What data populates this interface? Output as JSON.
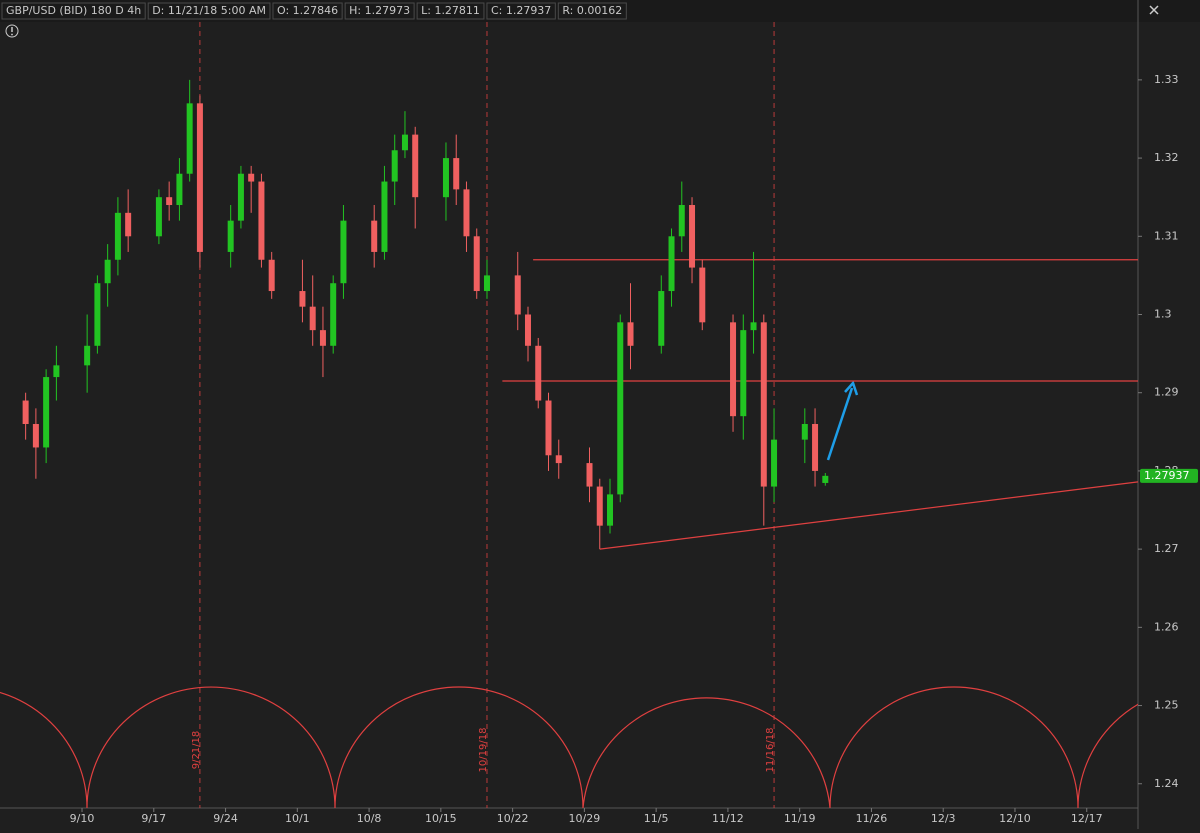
{
  "header": {
    "symbol": "GBP/USD (BID) 180 D 4h",
    "fields": [
      "D: 11/21/18 5:00 AM",
      "O: 1.27846",
      "H: 1.27973",
      "L: 1.27811",
      "C: 1.27937",
      "R: 0.00162"
    ]
  },
  "chart_data": {
    "type": "candlestick",
    "x": [
      "9/4",
      "9/5",
      "9/6",
      "9/7",
      "9/10",
      "9/11",
      "9/12",
      "9/13",
      "9/14",
      "9/17",
      "9/18",
      "9/19",
      "9/20",
      "9/21",
      "9/24",
      "9/25",
      "9/26",
      "9/27",
      "9/28",
      "10/1",
      "10/2",
      "10/3",
      "10/4",
      "10/5",
      "10/8",
      "10/9",
      "10/10",
      "10/11",
      "10/12",
      "10/15",
      "10/16",
      "10/17",
      "10/18",
      "10/19",
      "10/22",
      "10/23",
      "10/24",
      "10/25",
      "10/26",
      "10/29",
      "10/30",
      "10/31",
      "11/1",
      "11/2",
      "11/5",
      "11/6",
      "11/7",
      "11/8",
      "11/9",
      "11/12",
      "11/13",
      "11/14",
      "11/15",
      "11/16",
      "11/19",
      "11/20",
      "11/21"
    ],
    "open": [
      1.289,
      1.286,
      1.283,
      1.292,
      1.2935,
      1.296,
      1.304,
      1.307,
      1.313,
      1.31,
      1.315,
      1.314,
      1.318,
      1.327,
      1.308,
      1.312,
      1.318,
      1.317,
      1.307,
      1.303,
      1.301,
      1.298,
      1.296,
      1.304,
      1.312,
      1.308,
      1.317,
      1.321,
      1.323,
      1.315,
      1.32,
      1.316,
      1.31,
      1.303,
      1.305,
      1.3,
      1.296,
      1.289,
      1.282,
      1.281,
      1.278,
      1.273,
      1.277,
      1.299,
      1.296,
      1.303,
      1.31,
      1.314,
      1.306,
      1.299,
      1.287,
      1.298,
      1.299,
      1.278,
      1.284,
      1.286,
      1.27846
    ],
    "high": [
      1.29,
      1.288,
      1.293,
      1.296,
      1.3,
      1.305,
      1.309,
      1.315,
      1.316,
      1.316,
      1.317,
      1.32,
      1.33,
      1.328,
      1.314,
      1.319,
      1.319,
      1.318,
      1.308,
      1.307,
      1.305,
      1.301,
      1.305,
      1.314,
      1.314,
      1.319,
      1.323,
      1.326,
      1.324,
      1.322,
      1.323,
      1.317,
      1.311,
      1.307,
      1.308,
      1.301,
      1.297,
      1.29,
      1.284,
      1.283,
      1.279,
      1.279,
      1.3,
      1.304,
      1.305,
      1.311,
      1.317,
      1.315,
      1.307,
      1.3,
      1.3,
      1.308,
      1.3,
      1.288,
      1.288,
      1.288,
      1.27973
    ],
    "low": [
      1.284,
      1.279,
      1.281,
      1.289,
      1.29,
      1.295,
      1.301,
      1.305,
      1.308,
      1.309,
      1.312,
      1.312,
      1.317,
      1.306,
      1.306,
      1.311,
      1.313,
      1.306,
      1.302,
      1.299,
      1.296,
      1.292,
      1.295,
      1.302,
      1.306,
      1.307,
      1.314,
      1.32,
      1.311,
      1.312,
      1.314,
      1.308,
      1.302,
      1.302,
      1.298,
      1.294,
      1.288,
      1.28,
      1.279,
      1.276,
      1.27,
      1.272,
      1.276,
      1.293,
      1.295,
      1.301,
      1.308,
      1.304,
      1.298,
      1.285,
      1.284,
      1.295,
      1.273,
      1.276,
      1.281,
      1.278,
      1.27811
    ],
    "close": [
      1.286,
      1.283,
      1.292,
      1.2935,
      1.296,
      1.304,
      1.307,
      1.313,
      1.31,
      1.315,
      1.314,
      1.318,
      1.327,
      1.308,
      1.312,
      1.318,
      1.317,
      1.307,
      1.303,
      1.301,
      1.298,
      1.296,
      1.304,
      1.312,
      1.308,
      1.317,
      1.321,
      1.323,
      1.315,
      1.32,
      1.316,
      1.31,
      1.303,
      1.305,
      1.3,
      1.296,
      1.289,
      1.282,
      1.281,
      1.278,
      1.273,
      1.277,
      1.299,
      1.296,
      1.303,
      1.31,
      1.314,
      1.306,
      1.299,
      1.287,
      1.298,
      1.299,
      1.278,
      1.284,
      1.286,
      1.28,
      1.27937
    ],
    "up_color": "#22c422",
    "down_color": "#f06060",
    "xlim": [
      "9/2",
      "12/22"
    ],
    "xticks": [
      "9/10",
      "9/17",
      "9/24",
      "10/1",
      "10/8",
      "10/15",
      "10/22",
      "10/29",
      "11/5",
      "11/12",
      "11/19",
      "11/26",
      "12/3",
      "12/10",
      "12/17"
    ],
    "ylim": [
      1.2369,
      1.3374
    ],
    "yticks": [
      1.24,
      1.25,
      1.26,
      1.27,
      1.28,
      1.29,
      1.3,
      1.31,
      1.32,
      1.33
    ],
    "last_price": 1.27937,
    "hlines": [
      {
        "value": 1.307,
        "from": "10/24"
      },
      {
        "value": 1.2915,
        "from": "10/21"
      }
    ],
    "trendline": {
      "x": [
        "10/30",
        "12/22"
      ],
      "y": [
        1.27,
        1.2786
      ]
    },
    "vlines": [
      "9/21/18",
      "10/19/18",
      "11/16/18"
    ],
    "line_color": "#e04040"
  }
}
